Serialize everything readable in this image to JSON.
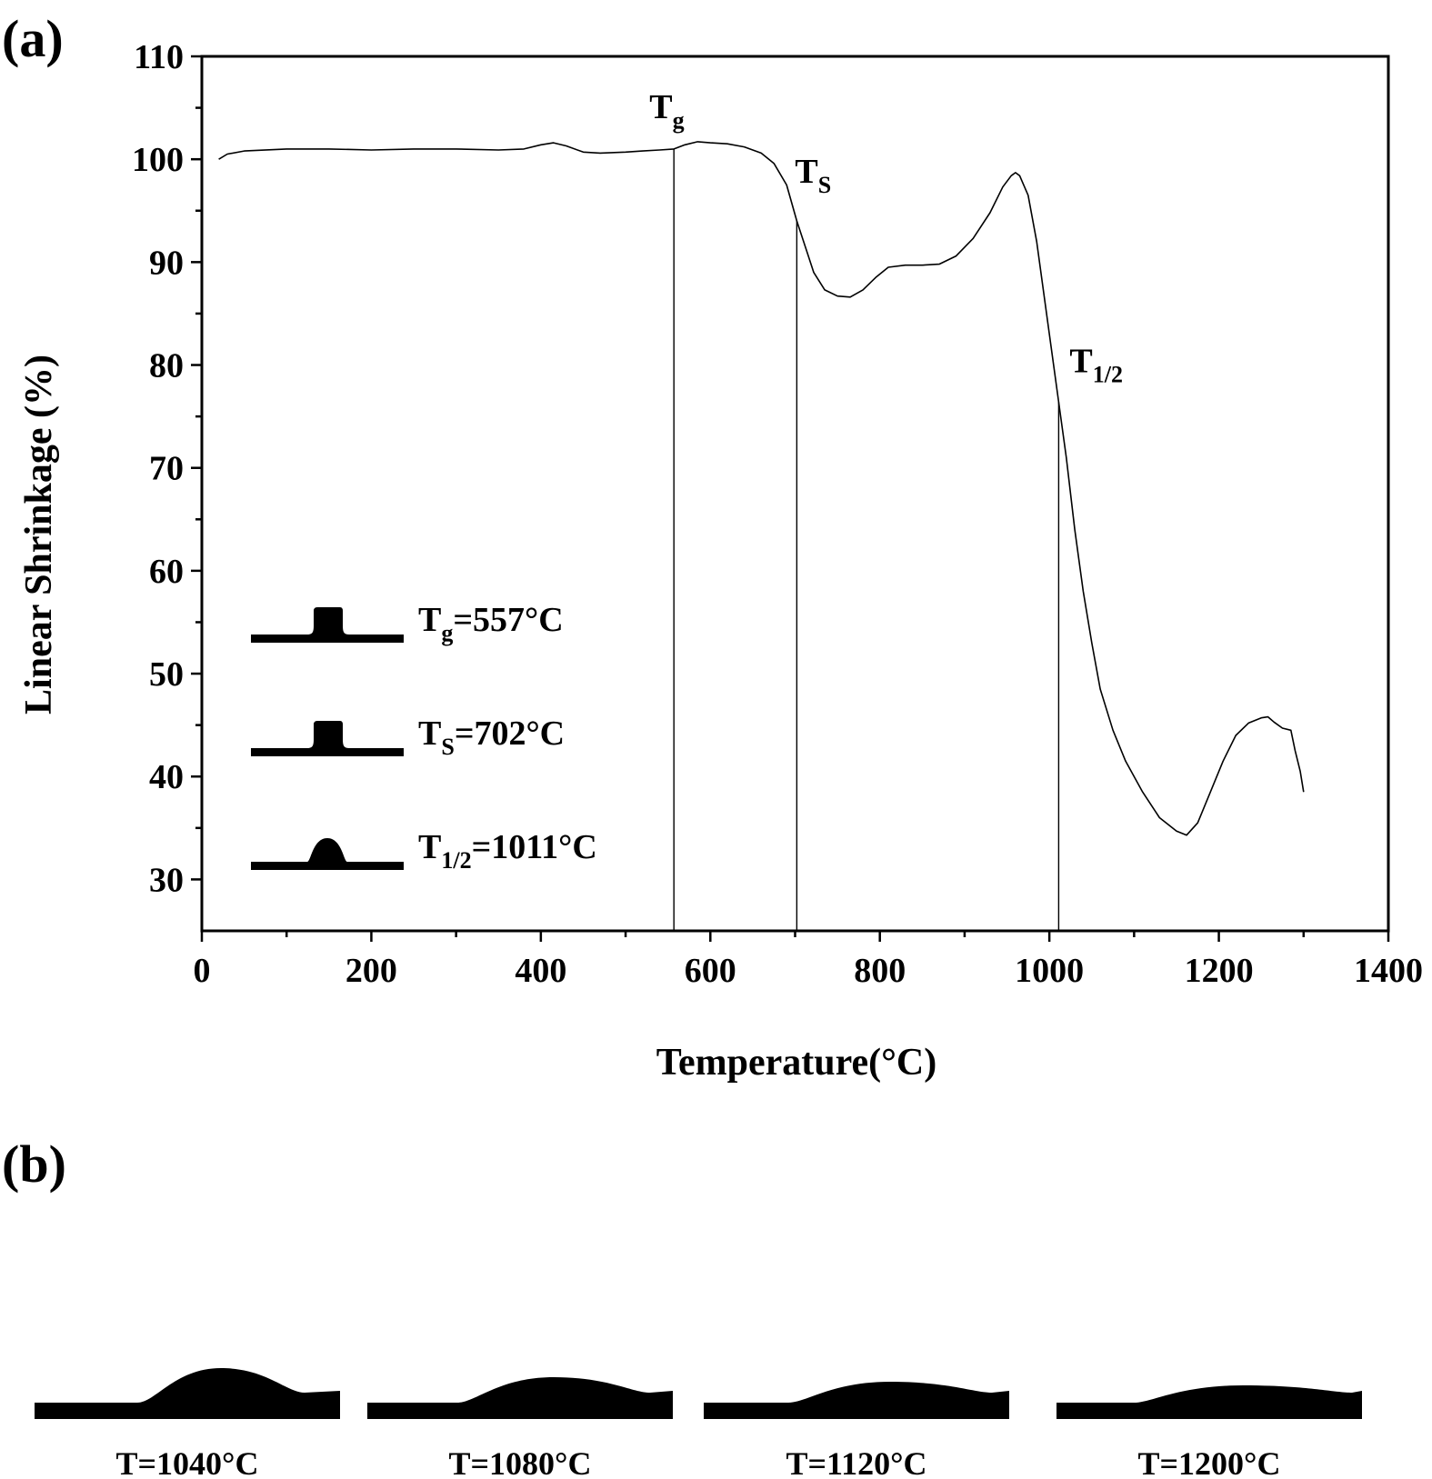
{
  "panel_a_label": "(a)",
  "panel_b_label": "(b)",
  "chart_data": {
    "type": "line",
    "title": "",
    "xlabel": "Temperature(°C)",
    "ylabel": "Linear Shrinkage (%)",
    "xlim": [
      0,
      1400
    ],
    "ylim": [
      25,
      110
    ],
    "x_ticks": [
      0,
      200,
      400,
      600,
      800,
      1000,
      1200,
      1400
    ],
    "y_ticks": [
      30,
      40,
      50,
      60,
      70,
      80,
      90,
      100,
      110
    ],
    "grid": false,
    "series": [
      {
        "points": [
          [
            20,
            100.0
          ],
          [
            30,
            100.5
          ],
          [
            50,
            100.8
          ],
          [
            100,
            101.0
          ],
          [
            150,
            101.0
          ],
          [
            200,
            100.9
          ],
          [
            250,
            101.0
          ],
          [
            300,
            101.0
          ],
          [
            350,
            100.9
          ],
          [
            380,
            101.0
          ],
          [
            400,
            101.4
          ],
          [
            415,
            101.6
          ],
          [
            430,
            101.3
          ],
          [
            450,
            100.7
          ],
          [
            470,
            100.6
          ],
          [
            500,
            100.7
          ],
          [
            520,
            100.8
          ],
          [
            540,
            100.9
          ],
          [
            557,
            101.0
          ],
          [
            570,
            101.4
          ],
          [
            585,
            101.7
          ],
          [
            600,
            101.6
          ],
          [
            620,
            101.5
          ],
          [
            640,
            101.2
          ],
          [
            660,
            100.6
          ],
          [
            675,
            99.6
          ],
          [
            690,
            97.5
          ],
          [
            702,
            94.0
          ],
          [
            712,
            91.5
          ],
          [
            722,
            89.0
          ],
          [
            735,
            87.3
          ],
          [
            750,
            86.7
          ],
          [
            765,
            86.6
          ],
          [
            780,
            87.3
          ],
          [
            795,
            88.5
          ],
          [
            810,
            89.5
          ],
          [
            830,
            89.7
          ],
          [
            850,
            89.7
          ],
          [
            870,
            89.8
          ],
          [
            890,
            90.6
          ],
          [
            910,
            92.3
          ],
          [
            930,
            94.8
          ],
          [
            945,
            97.3
          ],
          [
            955,
            98.4
          ],
          [
            960,
            98.7
          ],
          [
            965,
            98.4
          ],
          [
            975,
            96.5
          ],
          [
            985,
            92.0
          ],
          [
            995,
            86.0
          ],
          [
            1005,
            80.0
          ],
          [
            1011,
            76.4
          ],
          [
            1020,
            71.0
          ],
          [
            1030,
            64.0
          ],
          [
            1040,
            58.0
          ],
          [
            1050,
            53.0
          ],
          [
            1060,
            48.5
          ],
          [
            1075,
            44.5
          ],
          [
            1090,
            41.5
          ],
          [
            1110,
            38.5
          ],
          [
            1130,
            36.0
          ],
          [
            1150,
            34.7
          ],
          [
            1162,
            34.3
          ],
          [
            1175,
            35.5
          ],
          [
            1190,
            38.5
          ],
          [
            1205,
            41.5
          ],
          [
            1220,
            44.0
          ],
          [
            1235,
            45.2
          ],
          [
            1250,
            45.7
          ],
          [
            1258,
            45.8
          ],
          [
            1265,
            45.3
          ],
          [
            1275,
            44.7
          ],
          [
            1285,
            44.5
          ],
          [
            1290,
            42.5
          ],
          [
            1296,
            40.5
          ],
          [
            1300,
            38.5
          ]
        ]
      }
    ],
    "annotations": [
      {
        "base": "T",
        "sub": "g",
        "x": 557,
        "y_text": 104.0
      },
      {
        "base": "T",
        "sub": "S",
        "x": 702,
        "y_text": 97.7
      },
      {
        "base": "T",
        "sub": "1/2",
        "x": 1011,
        "y_text": 79.3
      }
    ],
    "vertical_lines": [
      {
        "x": 557,
        "y_top": 101.0
      },
      {
        "x": 702,
        "y_top": 94.0
      },
      {
        "x": 1011,
        "y_top": 76.4
      }
    ],
    "legend_position": "lower-left",
    "legend": [
      {
        "shape": "square-sample",
        "base": "T",
        "sub": "g",
        "rest": "=557°C"
      },
      {
        "shape": "square-sample",
        "base": "T",
        "sub": "S",
        "rest": "=702°C"
      },
      {
        "shape": "dome-sample",
        "base": "T",
        "sub": "1/2",
        "rest": "=1011°C"
      }
    ]
  },
  "panel_b": {
    "samples": [
      {
        "label": "T=1040°C",
        "shape": "tall-dome"
      },
      {
        "label": "T=1080°C",
        "shape": "medium-dome"
      },
      {
        "label": "T=1120°C",
        "shape": "low-dome"
      },
      {
        "label": "T=1200°C",
        "shape": "flat-dome"
      }
    ]
  }
}
